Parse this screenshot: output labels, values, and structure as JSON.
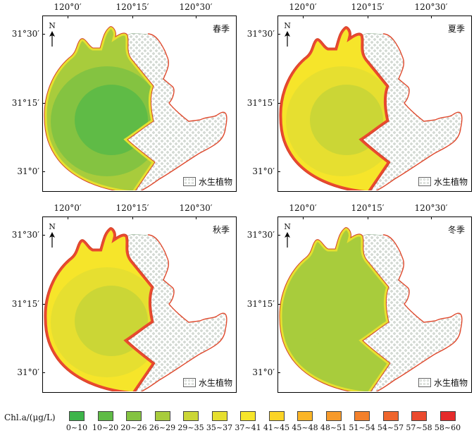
{
  "axes": {
    "lon_labels": [
      "120°0′",
      "120°15′",
      "120°30′"
    ],
    "lat_labels": [
      "31°30′",
      "31°15′",
      "31°0′"
    ]
  },
  "north_label": "N",
  "vegetation_label": "水生植物",
  "panels": [
    {
      "season": "春季",
      "class_index": {
        "edge": 5,
        "outer": 3,
        "middle": 2,
        "core": 1
      }
    },
    {
      "season": "夏季",
      "class_index": {
        "edge": 12,
        "outer": 6,
        "middle": 5,
        "core": 4
      }
    },
    {
      "season": "秋季",
      "class_index": {
        "edge": 12,
        "outer": 6,
        "middle": 5,
        "core": 4
      }
    },
    {
      "season": "冬季",
      "class_index": {
        "edge": 5,
        "outer": 3,
        "middle": 3,
        "core": 3
      }
    }
  ],
  "legend": {
    "title": "Chl.a/(μg/L)",
    "classes": [
      {
        "label": "0~10",
        "color": "#3db54a"
      },
      {
        "label": "10~20",
        "color": "#5fbb46"
      },
      {
        "label": "20~26",
        "color": "#84c341"
      },
      {
        "label": "26~29",
        "color": "#a8cc3c"
      },
      {
        "label": "29~35",
        "color": "#cbd636"
      },
      {
        "label": "35~37",
        "color": "#e6df30"
      },
      {
        "label": "37~41",
        "color": "#f6e52a"
      },
      {
        "label": "41~45",
        "color": "#fbd426"
      },
      {
        "label": "45~48",
        "color": "#fbb526"
      },
      {
        "label": "48~51",
        "color": "#f79a2a"
      },
      {
        "label": "51~54",
        "color": "#f3802b"
      },
      {
        "label": "54~57",
        "color": "#ee652d"
      },
      {
        "label": "57~58",
        "color": "#ea4a2e"
      },
      {
        "label": "58~60",
        "color": "#e52b2b"
      }
    ]
  }
}
